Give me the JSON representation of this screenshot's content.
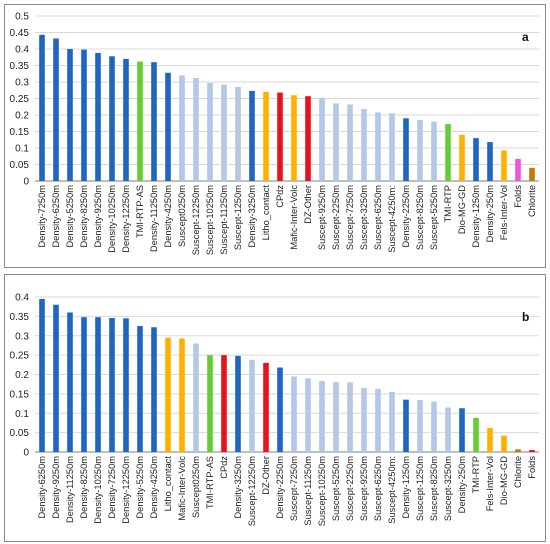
{
  "colors": {
    "density": "#1f66c2",
    "suscept": "#b4c7e7",
    "green": "#66cc33",
    "orange": "#ffb000",
    "red": "#e8121a",
    "magenta": "#ee55dd",
    "brown": "#c07a10",
    "grid": "#d9d9d9",
    "axis": "#7f7f7f"
  },
  "chart_data": [
    {
      "type": "bar",
      "panel_label": "a",
      "ylim": [
        0,
        0.5
      ],
      "yticks": [
        "0",
        "0.05",
        "0.1",
        "0.15",
        "0.2",
        "0.25",
        "0.3",
        "0.35",
        "0.4",
        "0.45",
        "0.5"
      ],
      "grid": true,
      "categories": [
        "Density-7250m",
        "Density-6250m",
        "Density-5250m",
        "Density-8250m",
        "Density-9250m",
        "Density-10250m",
        "Density-12250m",
        "TMI-RTP-AS",
        "Density-11250m",
        "Density-4250m",
        "Suscept0250m",
        "Suscept-12250m",
        "Suscept-10250m",
        "Suscept-11250m",
        "Suscept-1250m",
        "Density-3250m",
        "Litho_contact",
        "CPdz",
        "Mafic-Inter-Volc",
        "DZ-Other",
        "Suscept-9250m",
        "Suscept-2250m",
        "Suscept-7250m",
        "Suscept-3250m",
        "Suscept-6250m",
        "Suscept-4250m:",
        "Density-2250m",
        "Suscept-8250m",
        "Suscept-5250m",
        "TMI-RTP",
        "Dio-MG-GD",
        "Density-1250m",
        "Density-250m",
        "Fels-Inter-Vol",
        "Folds",
        "Chlorite"
      ],
      "values": [
        0.443,
        0.432,
        0.4,
        0.398,
        0.388,
        0.378,
        0.37,
        0.362,
        0.36,
        0.328,
        0.32,
        0.312,
        0.297,
        0.292,
        0.285,
        0.273,
        0.27,
        0.268,
        0.26,
        0.257,
        0.252,
        0.235,
        0.232,
        0.218,
        0.208,
        0.205,
        0.19,
        0.185,
        0.18,
        0.173,
        0.14,
        0.13,
        0.118,
        0.093,
        0.067,
        0.04
      ],
      "bar_colors": [
        "density",
        "density",
        "density",
        "density",
        "density",
        "density",
        "density",
        "green",
        "density",
        "density",
        "suscept",
        "suscept",
        "suscept",
        "suscept",
        "suscept",
        "density",
        "orange",
        "red",
        "orange",
        "red",
        "suscept",
        "suscept",
        "suscept",
        "suscept",
        "suscept",
        "suscept",
        "density",
        "suscept",
        "suscept",
        "green",
        "orange",
        "density",
        "density",
        "orange",
        "magenta",
        "brown"
      ]
    },
    {
      "type": "bar",
      "panel_label": "b",
      "ylim": [
        0,
        0.4
      ],
      "yticks": [
        "0",
        "0.05",
        "0.1",
        "0.15",
        "0.2",
        "0.25",
        "0.3",
        "0.35",
        "0.4"
      ],
      "grid": true,
      "categories": [
        "Density-6250m",
        "Density-9250m",
        "Density-11250m",
        "Density-8250m",
        "Density-10250m",
        "Density-7250m",
        "Density-12250m",
        "Density-5250m",
        "Density-4250m",
        "Litho_contact",
        "Mafic-Inter-Volc",
        "Suscept0250m",
        "TMI-RTP-AS",
        "CPdz",
        "Density-3250m",
        "Suscept-12250m",
        "DZ-Other",
        "Density-2250m",
        "Suscept-7250m",
        "Suscept-11250m",
        "Suscept-10250m",
        "Suscept-5250m",
        "Suscept-2250m",
        "Suscept-9250m",
        "Suscept-6250m",
        "Suscept-4250m:",
        "Density-1250m",
        "Suscept-1250m",
        "Suscept-8250m",
        "Suscept-3250m",
        "Density-250m",
        "TMI-RTP",
        "Fels-Inter-Vol",
        "Dio-MG-GD",
        "Chlorite",
        "Folds"
      ],
      "values": [
        0.395,
        0.38,
        0.36,
        0.348,
        0.348,
        0.346,
        0.345,
        0.325,
        0.322,
        0.295,
        0.293,
        0.28,
        0.25,
        0.25,
        0.248,
        0.238,
        0.23,
        0.218,
        0.195,
        0.19,
        0.183,
        0.18,
        0.18,
        0.165,
        0.163,
        0.155,
        0.135,
        0.134,
        0.13,
        0.115,
        0.113,
        0.088,
        0.062,
        0.042,
        0.007,
        0.005
      ],
      "bar_colors": [
        "density",
        "density",
        "density",
        "density",
        "density",
        "density",
        "density",
        "density",
        "density",
        "orange",
        "orange",
        "suscept",
        "green",
        "red",
        "density",
        "suscept",
        "red",
        "density",
        "suscept",
        "suscept",
        "suscept",
        "suscept",
        "suscept",
        "suscept",
        "suscept",
        "suscept",
        "density",
        "suscept",
        "suscept",
        "suscept",
        "density",
        "green",
        "orange",
        "orange",
        "brown",
        "red"
      ]
    }
  ]
}
